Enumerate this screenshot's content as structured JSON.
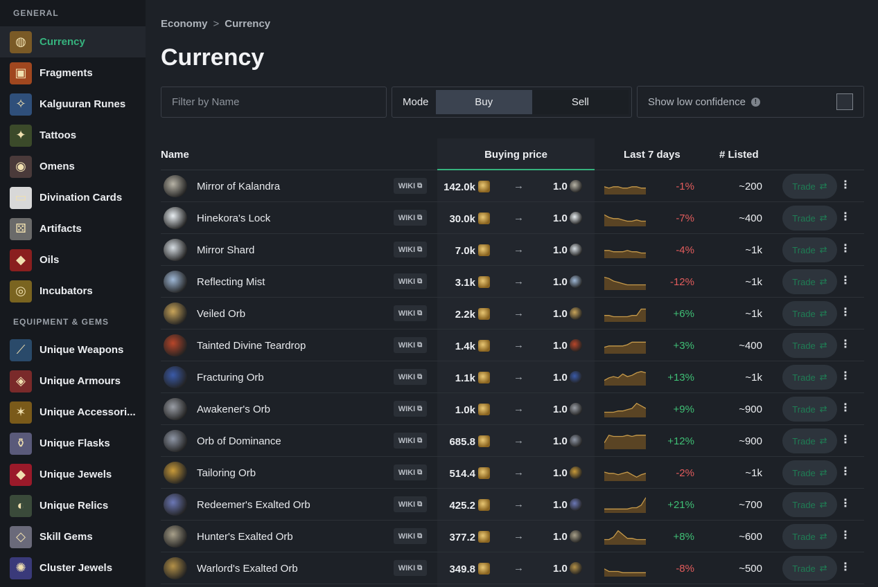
{
  "sidebar": {
    "sections": [
      {
        "title": "GENERAL",
        "items": [
          {
            "label": "Currency",
            "icon": "currency-icon",
            "active": true
          },
          {
            "label": "Fragments",
            "icon": "fragment-icon"
          },
          {
            "label": "Kalguuran Runes",
            "icon": "rune-icon"
          },
          {
            "label": "Tattoos",
            "icon": "tattoo-icon"
          },
          {
            "label": "Omens",
            "icon": "omen-icon"
          },
          {
            "label": "Divination Cards",
            "icon": "card-icon"
          },
          {
            "label": "Artifacts",
            "icon": "artifact-icon"
          },
          {
            "label": "Oils",
            "icon": "oil-icon"
          },
          {
            "label": "Incubators",
            "icon": "incubator-icon"
          }
        ]
      },
      {
        "title": "EQUIPMENT & GEMS",
        "items": [
          {
            "label": "Unique Weapons",
            "icon": "weapon-icon"
          },
          {
            "label": "Unique Armours",
            "icon": "armour-icon"
          },
          {
            "label": "Unique Accessori...",
            "icon": "accessory-icon"
          },
          {
            "label": "Unique Flasks",
            "icon": "flask-icon"
          },
          {
            "label": "Unique Jewels",
            "icon": "jewel-icon"
          },
          {
            "label": "Unique Relics",
            "icon": "relic-icon"
          },
          {
            "label": "Skill Gems",
            "icon": "gem-icon"
          },
          {
            "label": "Cluster Jewels",
            "icon": "cluster-jewel-icon"
          }
        ]
      }
    ]
  },
  "breadcrumb": {
    "items": [
      "Economy",
      "Currency"
    ],
    "separator": ">"
  },
  "page": {
    "title": "Currency"
  },
  "filter": {
    "placeholder": "Filter by Name",
    "value": ""
  },
  "mode": {
    "label": "Mode",
    "options": [
      "Buy",
      "Sell"
    ],
    "selected": "Buy"
  },
  "low_confidence": {
    "label": "Show low confidence",
    "checked": false
  },
  "table": {
    "headers": {
      "name": "Name",
      "buying_price": "Buying price",
      "last_7_days": "Last 7 days",
      "listed": "# Listed"
    },
    "wiki_label": "WIKI",
    "trade_label": "Trade",
    "arrow": "→",
    "rows": [
      {
        "name": "Mirror of Kalandra",
        "price": "142.0k",
        "receive": "1.0",
        "change": "-1%",
        "listed": "~200",
        "trend": [
          5,
          4,
          5,
          5,
          4,
          4,
          5,
          5,
          4,
          4
        ],
        "color": "#b7b3a6"
      },
      {
        "name": "Hinekora's Lock",
        "price": "30.0k",
        "receive": "1.0",
        "change": "-7%",
        "listed": "~400",
        "trend": [
          8,
          6,
          5,
          5,
          4,
          3,
          3,
          4,
          3,
          3
        ],
        "color": "#e8eef2"
      },
      {
        "name": "Mirror Shard",
        "price": "7.0k",
        "receive": "1.0",
        "change": "-4%",
        "listed": "~1k",
        "trend": [
          5,
          5,
          4,
          4,
          4,
          5,
          4,
          4,
          3,
          3
        ],
        "color": "#d6dde3"
      },
      {
        "name": "Reflecting Mist",
        "price": "3.1k",
        "receive": "1.0",
        "change": "-12%",
        "listed": "~1k",
        "trend": [
          9,
          8,
          6,
          5,
          4,
          3,
          3,
          3,
          3,
          3
        ],
        "color": "#9fb8d6"
      },
      {
        "name": "Veiled Orb",
        "price": "2.2k",
        "receive": "1.0",
        "change": "+6%",
        "listed": "~1k",
        "trend": [
          4,
          4,
          3,
          3,
          3,
          3,
          4,
          4,
          9,
          9
        ],
        "color": "#c9a55a"
      },
      {
        "name": "Tainted Divine Teardrop",
        "price": "1.4k",
        "receive": "1.0",
        "change": "+3%",
        "listed": "~400",
        "trend": [
          4,
          5,
          5,
          5,
          5,
          6,
          8,
          8,
          8,
          8
        ],
        "color": "#b8462a"
      },
      {
        "name": "Fracturing Orb",
        "price": "1.1k",
        "receive": "1.0",
        "change": "+13%",
        "listed": "~1k",
        "trend": [
          3,
          5,
          6,
          5,
          8,
          6,
          7,
          9,
          10,
          9
        ],
        "color": "#3a5aa8"
      },
      {
        "name": "Awakener's Orb",
        "price": "1.0k",
        "receive": "1.0",
        "change": "+9%",
        "listed": "~900",
        "trend": [
          3,
          3,
          3,
          4,
          4,
          5,
          6,
          10,
          8,
          6
        ],
        "color": "#9a9ea6"
      },
      {
        "name": "Orb of Dominance",
        "price": "685.8",
        "receive": "1.0",
        "change": "+12%",
        "listed": "~900",
        "trend": [
          4,
          10,
          9,
          9,
          9,
          10,
          9,
          10,
          10,
          10
        ],
        "color": "#8f97a6"
      },
      {
        "name": "Tailoring Orb",
        "price": "514.4",
        "receive": "1.0",
        "change": "-2%",
        "listed": "~1k",
        "trend": [
          6,
          5,
          5,
          4,
          5,
          6,
          4,
          2,
          4,
          5
        ],
        "color": "#c89a3a"
      },
      {
        "name": "Redeemer's Exalted Orb",
        "price": "425.2",
        "receive": "1.0",
        "change": "+21%",
        "listed": "~700",
        "trend": [
          2,
          2,
          2,
          2,
          2,
          2,
          3,
          3,
          5,
          11
        ],
        "color": "#6c78b6"
      },
      {
        "name": "Hunter's Exalted Orb",
        "price": "377.2",
        "receive": "1.0",
        "change": "+8%",
        "listed": "~600",
        "trend": [
          3,
          3,
          5,
          10,
          7,
          4,
          4,
          3,
          3,
          3
        ],
        "color": "#a8a08a"
      },
      {
        "name": "Warlord's Exalted Orb",
        "price": "349.8",
        "receive": "1.0",
        "change": "-8%",
        "listed": "~500",
        "trend": [
          5,
          3,
          3,
          3,
          2,
          2,
          2,
          2,
          2,
          2
        ],
        "color": "#b49148"
      }
    ]
  },
  "colors": {
    "accent": "#36b37e",
    "positive": "#3fbf75",
    "negative": "#e25c5c",
    "spark_fill": "#5a4424",
    "spark_line": "#c69a4a"
  }
}
